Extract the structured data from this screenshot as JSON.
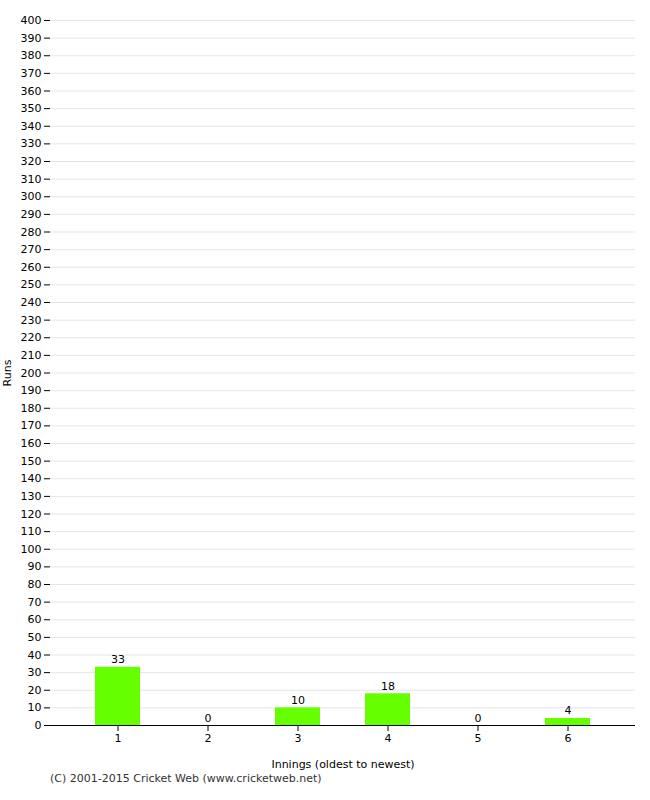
{
  "chart_data": {
    "type": "bar",
    "categories": [
      "1",
      "2",
      "3",
      "4",
      "5",
      "6"
    ],
    "values": [
      33,
      0,
      10,
      18,
      0,
      4
    ],
    "color": "#66ff00",
    "xlabel": "Innings (oldest to newest)",
    "ylabel": "Runs",
    "ylim": [
      0,
      400
    ],
    "yticks": [
      0,
      10,
      20,
      30,
      40,
      50,
      60,
      70,
      80,
      90,
      100,
      110,
      120,
      130,
      140,
      150,
      160,
      170,
      180,
      190,
      200,
      210,
      220,
      230,
      240,
      250,
      260,
      270,
      280,
      290,
      300,
      310,
      320,
      330,
      340,
      350,
      360,
      370,
      380,
      390,
      400
    ],
    "grid": true,
    "data_labels": true,
    "annotations": [
      "(C) 2001-2015 Cricket Web (www.cricketweb.net)"
    ]
  }
}
